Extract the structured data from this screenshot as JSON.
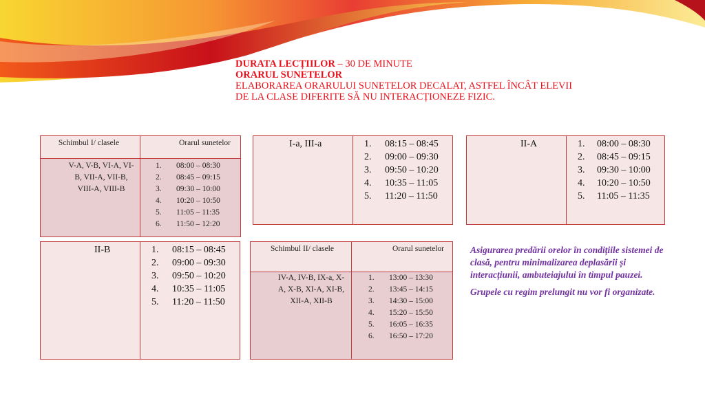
{
  "header": {
    "line1_bold": "DURATA LECȚIILOR",
    "line1_rest": " – 30 DE MINUTE",
    "line2": "ORARUL SUNETELOR",
    "line3": "ELABORAREA ORARULUI SUNETELOR DECALAT, ASTFEL ÎNCÂT ELEVII",
    "line4": "DE LA CLASE DIFERITE SĂ NU INTERACȚIONEZE FIZIC."
  },
  "colors": {
    "title": "#e8121c",
    "border": "#c0393b",
    "note": "#7030a0"
  },
  "tables": {
    "shift1": {
      "col1_header": "Schimbul I/ clasele",
      "col2_header": "Orarul sunetelor",
      "classes": "V-A, V-B, VI-A, VI-B, VII-A, VII-B, VIII-A, VIII-B",
      "times": [
        "08:00 – 08:30",
        "08:45 – 09:15",
        "09:30 – 10:00",
        "10:20 – 10:50",
        "11:05 – 11:35",
        "11:50 – 12:20"
      ]
    },
    "grades_1_3": {
      "classes": "I-a, III-a",
      "times": [
        "08:15 – 08:45",
        "09:00 – 09:30",
        "09:50 – 10:20",
        "10:35 – 11:05",
        "11:20 – 11:50"
      ]
    },
    "grade_2a": {
      "classes": "II-A",
      "times": [
        "08:00 – 08:30",
        "08:45 – 09:15",
        "09:30 – 10:00",
        "10:20 – 10:50",
        "11:05 – 11:35"
      ]
    },
    "grade_2b": {
      "classes": "II-B",
      "times": [
        "08:15 – 08:45",
        "09:00 – 09:30",
        "09:50 – 10:20",
        "10:35 – 11:05",
        "11:20 – 11:50"
      ]
    },
    "shift2": {
      "col1_header": "Schimbul II/ clasele",
      "col2_header": "Orarul sunetelor",
      "classes": "IV-A, IV-B, IX-a, X-A, X-B, XI-A, XI-B, XII-A, XII-B",
      "times": [
        "13:00 – 13:30",
        "13:45 – 14:15",
        "14:30 – 15:00",
        "15:20 – 15:50",
        "16:05 – 16:35",
        "16:50 – 17:20"
      ]
    }
  },
  "notes": [
    "Asigurarea predării orelor în condițiile sistemei de clasă, pentru minimalizarea deplasării și interacțiunii, ambuteiajului în timpul pauzei.",
    "Grupele cu regim prelungit nu vor fi organizate."
  ]
}
